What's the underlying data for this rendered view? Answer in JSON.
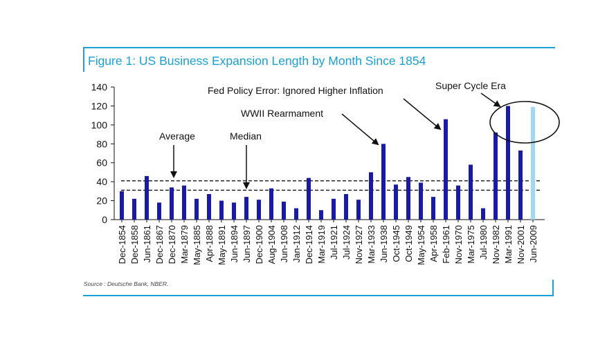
{
  "figure": {
    "title": "Figure 1: US Business Expansion Length by Month Since 1854",
    "source": "Source : Deutsche Bank, NBER."
  },
  "colors": {
    "accent": "#1aa0d8",
    "bar": "#1a1aa8",
    "bar_highlight": "#9fd8f0"
  },
  "chart_data": {
    "type": "bar",
    "title": "Figure 1: US Business Expansion Length by Month Since 1854",
    "xlabel": "",
    "ylabel": "",
    "ylim": [
      0,
      140
    ],
    "yticks": [
      0,
      20,
      40,
      60,
      80,
      100,
      120,
      140
    ],
    "grid": false,
    "categories": [
      "Dec-1854",
      "Dec-1858",
      "Jun-1861",
      "Dec-1867",
      "Dec-1870",
      "Mar-1879",
      "May-1885",
      "Apr-1888",
      "May-1891",
      "Jun-1894",
      "Jun-1897",
      "Dec-1900",
      "Aug-1904",
      "Jun-1908",
      "Jan-1912",
      "Dec-1914",
      "Mar-1919",
      "Jul-1921",
      "Jul-1924",
      "Nov-1927",
      "Mar-1933",
      "Jun-1938",
      "Oct-1945",
      "Oct-1949",
      "May-1954",
      "Apr-1958",
      "Feb-1961",
      "Nov-1970",
      "Mar-1975",
      "Jul-1980",
      "Nov-1982",
      "Mar-1991",
      "Nov-2001",
      "Jun-2009"
    ],
    "values": [
      30,
      22,
      46,
      18,
      34,
      36,
      22,
      27,
      20,
      18,
      24,
      21,
      33,
      19,
      12,
      44,
      10,
      22,
      27,
      21,
      50,
      80,
      37,
      45,
      39,
      24,
      106,
      36,
      58,
      12,
      92,
      120,
      73,
      119
    ],
    "highlight_index": 33,
    "reference_lines": [
      {
        "label": "Average",
        "value": 41
      },
      {
        "label": "Median",
        "value": 31
      }
    ],
    "annotations": [
      {
        "label": "Average",
        "target": "Average line"
      },
      {
        "label": "Median",
        "target": "Median line"
      },
      {
        "label": "WWII Rearmament",
        "target": "Jun-1938"
      },
      {
        "label": "Fed Policy Error: Ignored Higher Inflation",
        "target": "Feb-1961"
      },
      {
        "label": "Super Cycle Era",
        "target": "Nov-1982 to Jun-2009"
      }
    ]
  }
}
